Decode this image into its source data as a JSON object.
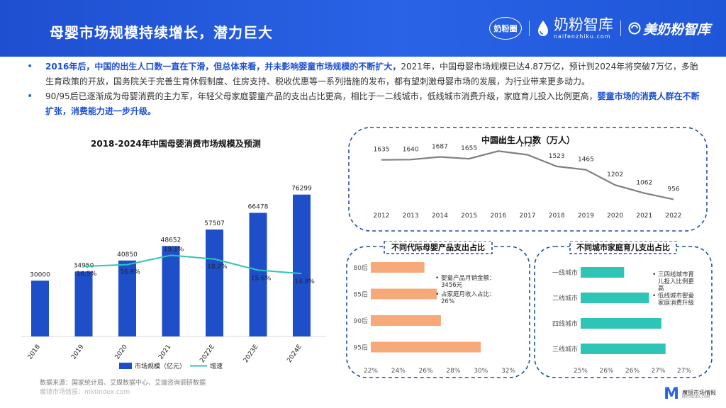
{
  "header": {
    "title": "母婴市场规模持续增长，潜力巨大",
    "logo1": "奶粉圈",
    "logo2_cn": "奶粉智库",
    "logo2_en": "naifenzhiku.com",
    "logo3": "美奶粉智库"
  },
  "bullets": [
    {
      "bold": "2016年后，中国的出生人口数一直在下滑，但总体来看，并未影响婴童市场规模的不断扩大，",
      "text": "2021年，中国母婴市场规模已达4.87万亿，预计到2024年将突破7万亿，多胎生育政策的开放，国务院关于完善生育休假制度、住房支持、税收优惠等一系列措施的发布，都有望刺激母婴市场的发展，为行业带来更多动力。"
    },
    {
      "text": "90/95后已逐渐成为母婴消费的主力军，年轻父母家庭婴童产品的支出占比更高，相比于一二线城市，低线城市消费升级，家庭育儿投入比例更高，",
      "bold": "婴童市场的消费人群在不断扩张，消费能力进一步升级。"
    }
  ],
  "chart_data": [
    {
      "type": "bar",
      "title": "2018-2024年中国母婴消费市场规模及预测",
      "categories": [
        "2018",
        "2019",
        "2020",
        "2021",
        "2022E",
        "2023E",
        "2024E"
      ],
      "series": [
        {
          "name": "市场规模（亿元）",
          "type": "bar",
          "values": [
            30000,
            34950,
            40850,
            48652,
            57507,
            66478,
            76299
          ],
          "color": "#1f4fc8"
        },
        {
          "name": "增速",
          "type": "line",
          "values": [
            null,
            16.5,
            16.9,
            19.1,
            18.2,
            15.6,
            14.8
          ],
          "color": "#2ec4b6"
        }
      ],
      "value_labels": [
        "30000",
        "34950",
        "40850",
        "48652",
        "57507",
        "66478",
        "76299"
      ],
      "rate_labels": [
        "",
        "16.5%",
        "16.9%",
        "19.1%",
        "18.2%",
        "15.6%",
        "14.8%"
      ],
      "ylim": [
        0,
        80000
      ],
      "rate_ylim": [
        0,
        35
      ],
      "legend_position": "bottom"
    },
    {
      "type": "line",
      "title": "中国出生人口数（万人）",
      "x": [
        "2012",
        "2013",
        "2014",
        "2015",
        "2016",
        "2017",
        "2018",
        "2019",
        "2020",
        "2021",
        "2022"
      ],
      "values": [
        1635,
        1640,
        1687,
        1655,
        1786,
        1723,
        1523,
        1465,
        1202,
        1062,
        956
      ],
      "labels": [
        "1635",
        "1640",
        "1687",
        "1655",
        "1786",
        "1723",
        "1523",
        "1465",
        "1202",
        "1062",
        "956"
      ],
      "color": "#808080",
      "ylim": [
        0,
        2000
      ]
    },
    {
      "type": "bar",
      "orientation": "horizontal",
      "title": "不同代际母婴产品支出占比",
      "categories": [
        "80后",
        "85后",
        "90后",
        "95后"
      ],
      "values": [
        25.9,
        26.8,
        27.1,
        30.0
      ],
      "ticks": [
        "22%",
        "24%",
        "26%",
        "28%",
        "30%",
        "32%"
      ],
      "xlim": [
        22,
        32
      ],
      "color": "#f7a97a",
      "notes": [
        "婴童产品月销金额：3456元",
        "占家庭月收入占比：26%"
      ]
    },
    {
      "type": "bar",
      "orientation": "horizontal",
      "title": "不同城市家庭育儿支出占比",
      "categories": [
        "一线城市",
        "二线城市",
        "四线城市",
        "三线城市"
      ],
      "values": [
        25.8,
        26.4,
        26.7,
        26.8
      ],
      "ticks": [
        "25%",
        "26%",
        "26%",
        "27%",
        "27%"
      ],
      "xlim": [
        24.75,
        27.25
      ],
      "color": "#2ec4b6",
      "notes": [
        "三四线城市育儿投入比例更高",
        "低线城市婴童家庭消费升级"
      ]
    }
  ],
  "footer": {
    "source": "数据来源：国家统计局、艾媒数据中心、艾瑞咨询调研数据",
    "watermark": "魔镜市场情报：mktindex.com",
    "corner_cn": "魔镜市场情报",
    "corner_en": "MKTINDEX.COM"
  }
}
